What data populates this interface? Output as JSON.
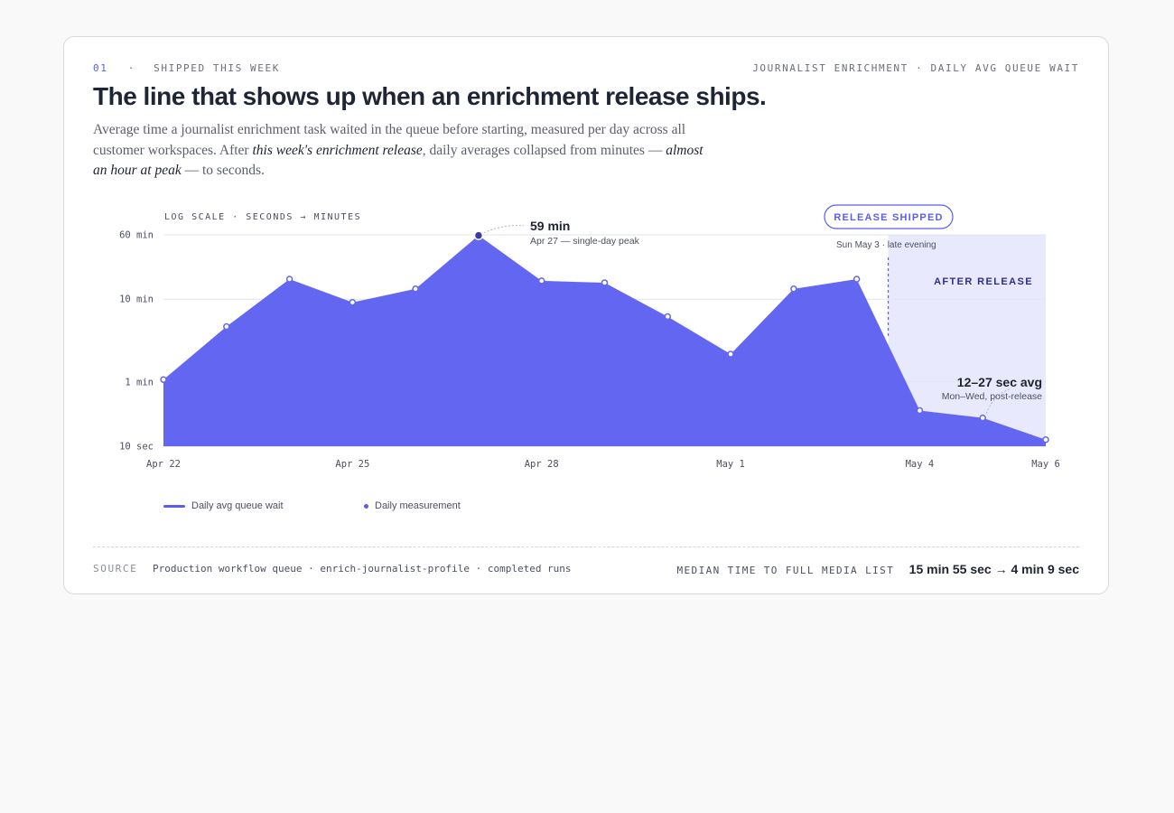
{
  "header": {
    "number": "01",
    "separator": "·",
    "eyebrow": "SHIPPED THIS WEEK",
    "context": "JOURNALIST ENRICHMENT · DAILY AVG QUEUE WAIT",
    "title": "The line that shows up when an enrichment release ships.",
    "desc_1": "Average time a journalist enrichment task waited in the queue before starting, measured per day across all customer workspaces. After ",
    "desc_em_1": "this week's enrichment release",
    "desc_2": ", daily averages collapsed from minutes — ",
    "desc_em_2": "almost an hour at peak",
    "desc_3": " — to seconds."
  },
  "chart_data": {
    "type": "area",
    "scale_note": "LOG SCALE · SECONDS → MINUTES",
    "y_scale": "log",
    "y_unit": "seconds",
    "ylim": [
      10,
      3600
    ],
    "y_ticks": [
      {
        "value": 10,
        "label": "10 sec"
      },
      {
        "value": 60,
        "label": "1 min"
      },
      {
        "value": 600,
        "label": "10 min"
      },
      {
        "value": 3600,
        "label": "60 min"
      }
    ],
    "x_tick_labels": [
      "Apr 22",
      "Apr 25",
      "Apr 28",
      "May 1",
      "May 4",
      "May 6"
    ],
    "x_tick_index": [
      0,
      3,
      6,
      9,
      12,
      14
    ],
    "x": [
      "Apr 22",
      "Apr 23",
      "Apr 24",
      "Apr 25",
      "Apr 26",
      "Apr 27",
      "Apr 28",
      "Apr 29",
      "Apr 30",
      "May 1",
      "May 2",
      "May 3",
      "May 4",
      "May 5",
      "May 6"
    ],
    "series": [
      {
        "name": "Daily avg queue wait",
        "values": [
          64,
          280,
          1050,
          550,
          800,
          3540,
          1000,
          950,
          370,
          130,
          800,
          1050,
          27,
          22,
          12
        ]
      }
    ],
    "peak_index": 5,
    "release_index": 11.5,
    "grid": true,
    "legend_position": "bottom-left",
    "legend": [
      "Daily avg queue wait",
      "Daily measurement"
    ],
    "annotations": {
      "peak_value": "59 min",
      "peak_note": "Apr 27 — single-day peak",
      "release_badge": "RELEASE SHIPPED",
      "release_note": "Sun May 3 · late evening",
      "after_label": "AFTER RELEASE",
      "post_value": "12–27 sec avg",
      "post_note": "Mon–Wed, post-release"
    },
    "colors": {
      "fill": "#6366f1",
      "marker_stroke": "#6366f1",
      "peak_marker": "#3b3aa8",
      "after_band": "#e9e9fd",
      "badge": "#5b5cf0"
    }
  },
  "footer": {
    "source_label": "SOURCE",
    "source_value": "Production workflow queue · enrich-journalist-profile · completed runs",
    "median_label": "MEDIAN TIME TO FULL MEDIA LIST",
    "median_value": "15 min 55 sec → 4 min 9 sec"
  }
}
